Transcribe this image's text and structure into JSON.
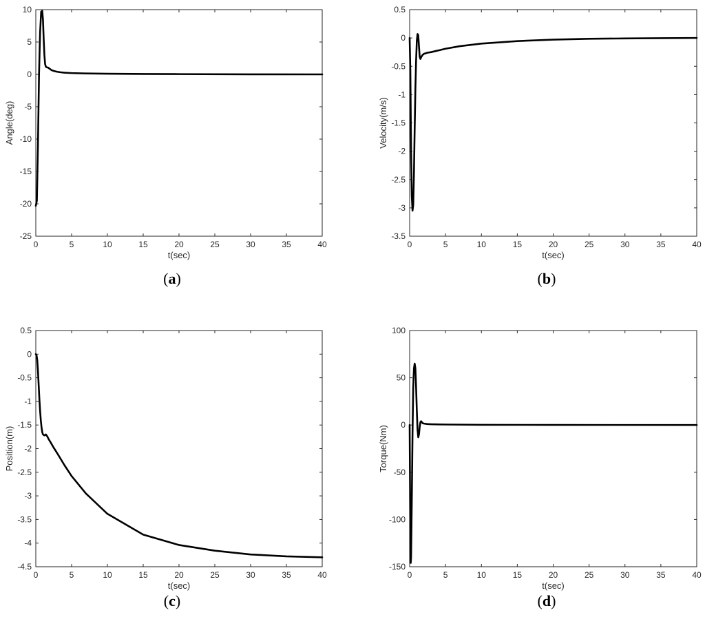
{
  "chart_data": [
    {
      "panel": "a",
      "type": "line",
      "caption": "(a)",
      "caption_letter": "a",
      "xlabel": "t(sec)",
      "ylabel": "Angle(deg)",
      "xlim": [
        0,
        40
      ],
      "ylim": [
        -25,
        10
      ],
      "xticks": [
        0,
        5,
        10,
        15,
        20,
        25,
        30,
        35,
        40
      ],
      "yticks": [
        -25,
        -20,
        -15,
        -10,
        -5,
        0,
        5,
        10
      ],
      "grid": false,
      "series": [
        {
          "color": "#000000",
          "x": [
            0,
            0.15,
            0.3,
            0.45,
            0.6,
            0.75,
            0.9,
            1.0,
            1.1,
            1.2,
            1.3,
            1.4,
            1.5,
            1.7,
            1.9,
            2.2,
            2.6,
            3,
            3.5,
            4,
            5,
            7,
            10,
            15,
            20,
            30,
            40
          ],
          "y": [
            -20.3,
            -19.5,
            -11,
            0,
            6.5,
            9.7,
            9.8,
            8.5,
            5.5,
            3.0,
            1.6,
            1.2,
            1.1,
            1.05,
            0.9,
            0.65,
            0.5,
            0.4,
            0.32,
            0.26,
            0.2,
            0.14,
            0.1,
            0.06,
            0.04,
            0.01,
            0.0
          ]
        }
      ]
    },
    {
      "panel": "b",
      "type": "line",
      "caption": "(b)",
      "caption_letter": "b",
      "xlabel": "t(sec)",
      "ylabel": "Velocity(m/s)",
      "xlim": [
        0,
        40
      ],
      "ylim": [
        -3.5,
        0.5
      ],
      "xticks": [
        0,
        5,
        10,
        15,
        20,
        25,
        30,
        35,
        40
      ],
      "yticks": [
        -3.5,
        -3,
        -2.5,
        -2,
        -1.5,
        -1,
        -0.5,
        0,
        0.5
      ],
      "grid": false,
      "series": [
        {
          "color": "#000000",
          "x": [
            0,
            0.1,
            0.2,
            0.3,
            0.4,
            0.5,
            0.6,
            0.7,
            0.8,
            0.9,
            1.0,
            1.1,
            1.2,
            1.3,
            1.4,
            1.5,
            1.6,
            1.8,
            2,
            2.5,
            3,
            4,
            5,
            7,
            10,
            15,
            20,
            25,
            30,
            35,
            40
          ],
          "y": [
            0.0,
            -0.6,
            -2.0,
            -2.8,
            -3.05,
            -2.95,
            -2.4,
            -1.6,
            -0.9,
            -0.4,
            -0.05,
            0.07,
            0.05,
            -0.15,
            -0.33,
            -0.37,
            -0.34,
            -0.3,
            -0.28,
            -0.26,
            -0.25,
            -0.22,
            -0.19,
            -0.145,
            -0.1,
            -0.055,
            -0.03,
            -0.015,
            -0.008,
            -0.004,
            0.0
          ]
        }
      ]
    },
    {
      "panel": "c",
      "type": "line",
      "caption": "(c)",
      "caption_letter": "c",
      "xlabel": "t(sec)",
      "ylabel": "Position(m)",
      "xlim": [
        0,
        40
      ],
      "ylim": [
        -4.5,
        0.5
      ],
      "xticks": [
        0,
        5,
        10,
        15,
        20,
        25,
        30,
        35,
        40
      ],
      "yticks": [
        -4.5,
        -4,
        -3.5,
        -3,
        -2.5,
        -2,
        -1.5,
        -1,
        -0.5,
        0,
        0.5
      ],
      "grid": false,
      "series": [
        {
          "color": "#000000",
          "x": [
            0,
            0.1,
            0.2,
            0.3,
            0.4,
            0.5,
            0.6,
            0.7,
            0.8,
            0.9,
            1.0,
            1.2,
            1.4,
            1.6,
            1.8,
            2,
            2.5,
            3,
            4,
            5,
            7,
            10,
            15,
            20,
            25,
            30,
            35,
            40
          ],
          "y": [
            0.0,
            -0.02,
            -0.12,
            -0.35,
            -0.65,
            -0.95,
            -1.2,
            -1.4,
            -1.55,
            -1.65,
            -1.7,
            -1.72,
            -1.7,
            -1.74,
            -1.8,
            -1.85,
            -1.98,
            -2.1,
            -2.35,
            -2.58,
            -2.95,
            -3.38,
            -3.82,
            -4.04,
            -4.16,
            -4.24,
            -4.28,
            -4.3
          ]
        }
      ]
    },
    {
      "panel": "d",
      "type": "line",
      "caption": "(d)",
      "caption_letter": "d",
      "xlabel": "t(sec)",
      "ylabel": "Torque(Nm)",
      "xlim": [
        0,
        40
      ],
      "ylim": [
        -150,
        100
      ],
      "xticks": [
        0,
        5,
        10,
        15,
        20,
        25,
        30,
        35,
        40
      ],
      "yticks": [
        -150,
        -100,
        -50,
        0,
        50,
        100
      ],
      "grid": false,
      "series": [
        {
          "color": "#000000",
          "x": [
            0,
            0.05,
            0.1,
            0.15,
            0.2,
            0.3,
            0.4,
            0.5,
            0.6,
            0.7,
            0.8,
            0.9,
            1.0,
            1.1,
            1.2,
            1.3,
            1.4,
            1.5,
            1.6,
            1.7,
            1.8,
            2,
            2.5,
            3,
            5,
            10,
            20,
            40
          ],
          "y": [
            0,
            -60,
            -130,
            -146,
            -140,
            -80,
            -10,
            40,
            60,
            65,
            60,
            40,
            15,
            -5,
            -13,
            -10,
            -2,
            3,
            4,
            3,
            2,
            1.5,
            1,
            0.8,
            0.5,
            0.2,
            0.1,
            0
          ]
        }
      ]
    }
  ]
}
